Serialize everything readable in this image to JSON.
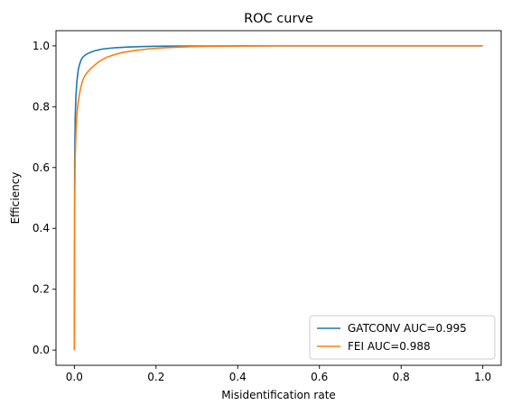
{
  "chart_data": {
    "type": "line",
    "title": "ROC curve",
    "xlabel": "Misidentification rate",
    "ylabel": "Efficiency",
    "xlim": [
      -0.045,
      1.045
    ],
    "ylim": [
      -0.05,
      1.05
    ],
    "xticks": [
      0.0,
      0.2,
      0.4,
      0.6,
      0.8,
      1.0
    ],
    "yticks": [
      0.0,
      0.2,
      0.4,
      0.6,
      0.8,
      1.0
    ],
    "xtick_labels": [
      "0.0",
      "0.2",
      "0.4",
      "0.6",
      "0.8",
      "1.0"
    ],
    "ytick_labels": [
      "0.0",
      "0.2",
      "0.4",
      "0.6",
      "0.8",
      "1.0"
    ],
    "grid": false,
    "legend_position": "lower-right",
    "series": [
      {
        "name": "GATCONV AUC=0.995",
        "color": "#1f77b4",
        "x": [
          0.0,
          0.0008,
          0.002,
          0.004,
          0.006,
          0.008,
          0.01,
          0.013,
          0.016,
          0.02,
          0.025,
          0.03,
          0.04,
          0.05,
          0.07,
          0.1,
          0.13,
          0.17,
          0.22,
          0.3,
          0.4,
          0.5,
          0.6,
          0.8,
          1.0
        ],
        "y": [
          0.0,
          0.62,
          0.76,
          0.84,
          0.88,
          0.905,
          0.925,
          0.94,
          0.952,
          0.962,
          0.968,
          0.973,
          0.979,
          0.984,
          0.99,
          0.994,
          0.996,
          0.998,
          0.999,
          0.9995,
          1.0,
          1.0,
          1.0,
          1.0,
          1.0
        ]
      },
      {
        "name": "FEI AUC=0.988",
        "color": "#ff7f0e",
        "x": [
          0.0,
          0.001,
          0.002,
          0.004,
          0.006,
          0.008,
          0.01,
          0.013,
          0.016,
          0.02,
          0.025,
          0.03,
          0.04,
          0.05,
          0.06,
          0.07,
          0.08,
          0.1,
          0.12,
          0.15,
          0.18,
          0.22,
          0.26,
          0.3,
          0.35,
          0.4,
          0.5,
          0.6,
          0.8,
          1.0
        ],
        "y": [
          0.0,
          0.5,
          0.63,
          0.72,
          0.77,
          0.8,
          0.82,
          0.845,
          0.865,
          0.885,
          0.9,
          0.91,
          0.925,
          0.937,
          0.948,
          0.956,
          0.963,
          0.972,
          0.979,
          0.985,
          0.99,
          0.994,
          0.996,
          0.998,
          0.999,
          0.9995,
          1.0,
          1.0,
          1.0,
          1.0
        ]
      }
    ]
  }
}
